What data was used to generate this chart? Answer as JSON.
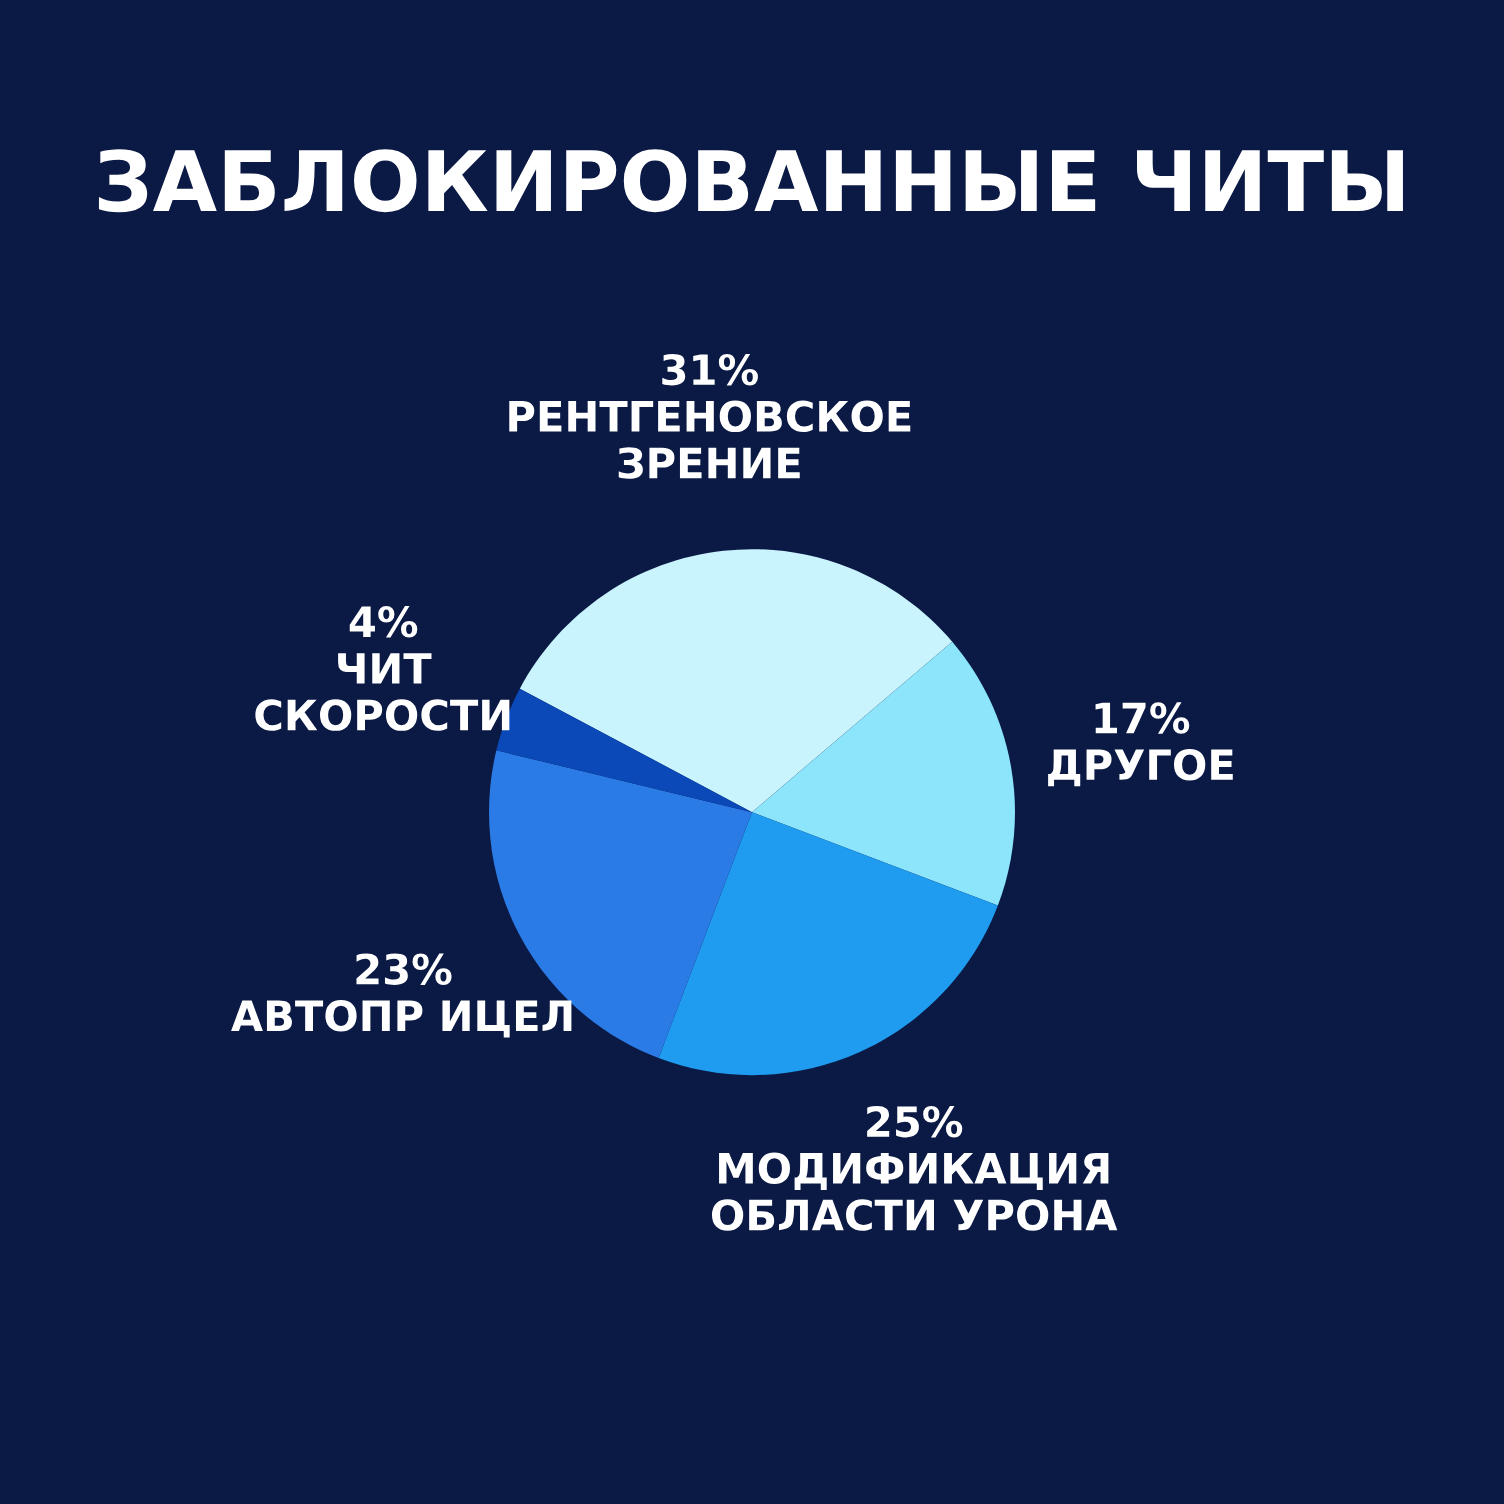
{
  "chart_data": {
    "type": "pie",
    "title": "ЗАБЛОКИРОВАННЫЕ ЧИТЫ",
    "categories": [
      "РЕНТГЕНОВСКОЕ\nЗРЕНИЕ",
      "ДРУГОЕ",
      "МОДИФИКАЦИЯ\nОБЛАСТИ УРОНА",
      "АВТОПР ИЦЕЛ",
      "ЧИТ\nСКОРОСТИ"
    ],
    "values": [
      31,
      17,
      25,
      23,
      4
    ],
    "colors": [
      "#c9f3fd",
      "#8de5fb",
      "#1f9cf0",
      "#2b7be6",
      "#0b48b8"
    ],
    "value_labels": [
      "31%",
      "17%",
      "25%",
      "23%",
      "4%"
    ]
  }
}
